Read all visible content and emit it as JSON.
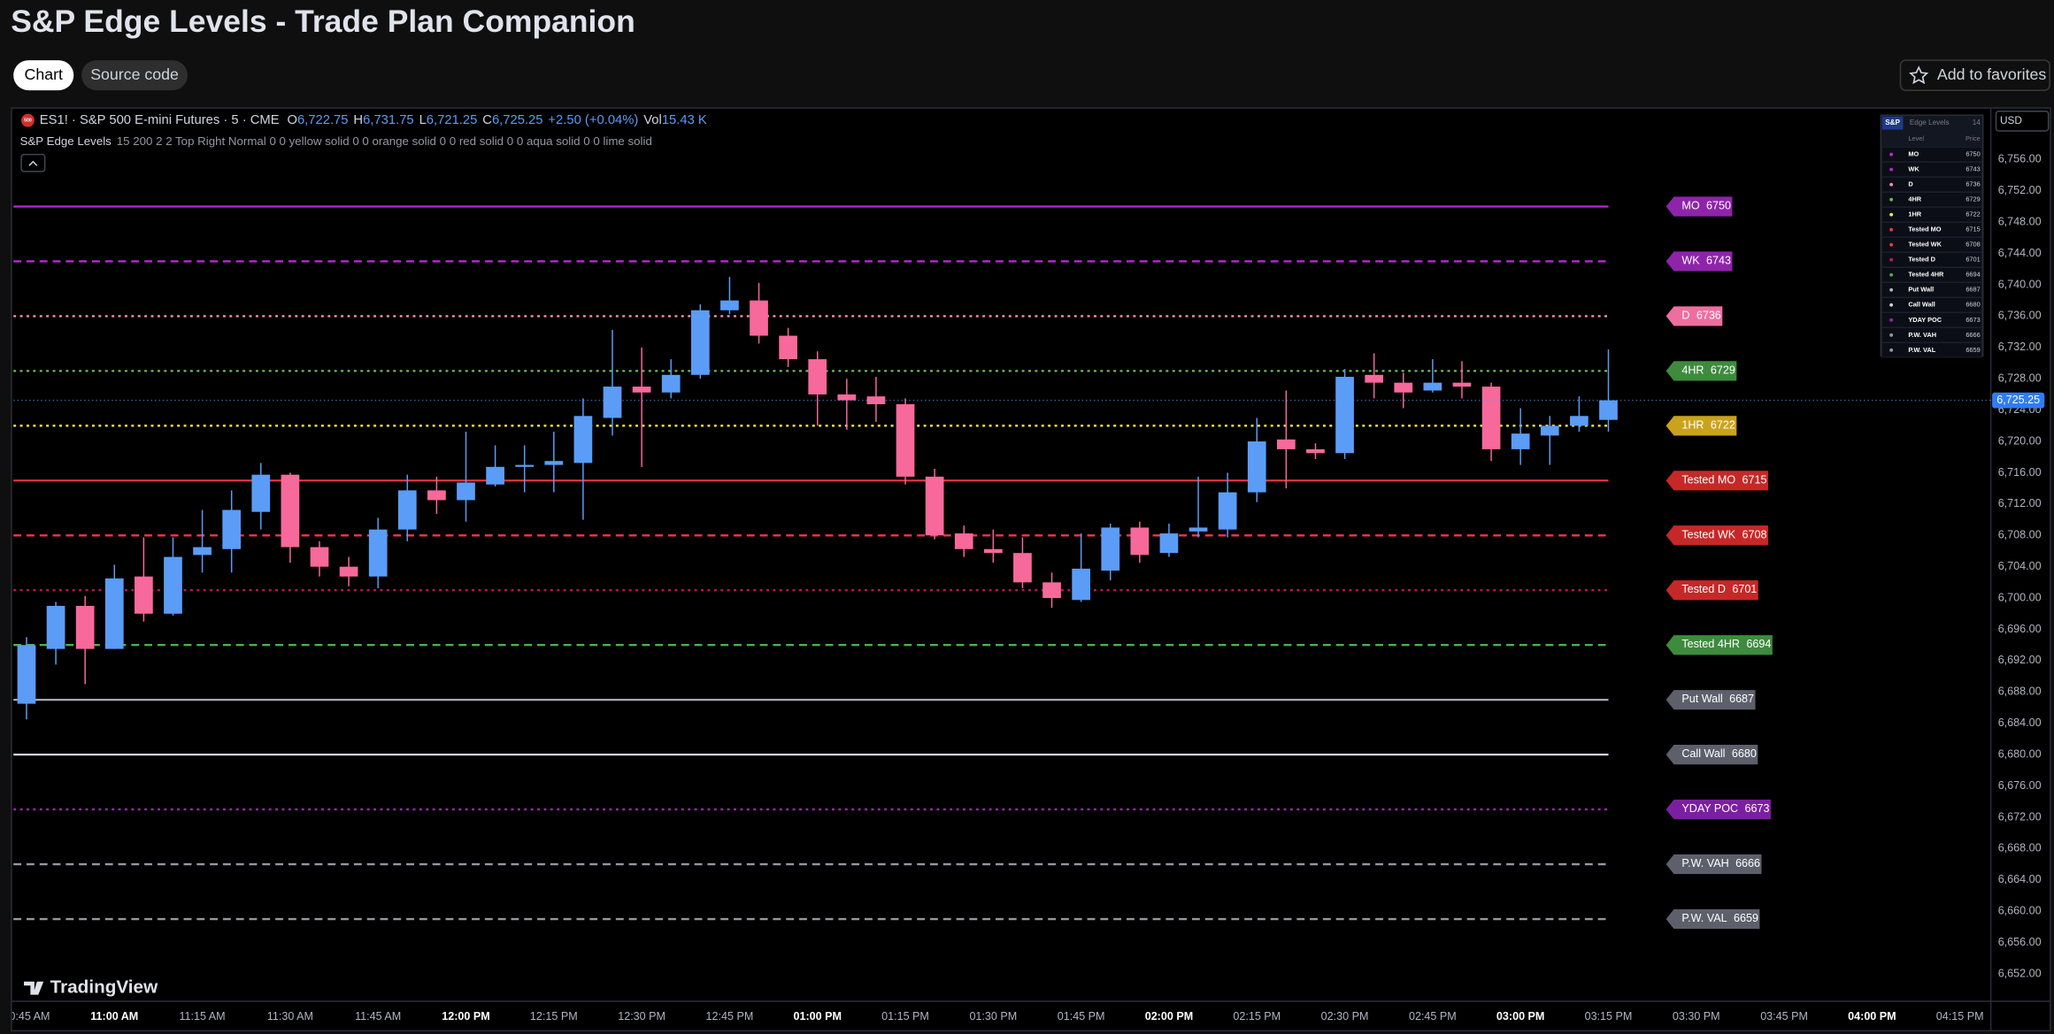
{
  "header": {
    "title": "S&P Edge Levels - Trade Plan Companion",
    "tabs": [
      "Chart",
      "Source code"
    ],
    "favorites": "Add to favorites"
  },
  "chart_data": {
    "type": "candlestick",
    "symbol_badge": "500",
    "symbol": "ES1! · S&P 500 E-mini Futures · 5 · CME",
    "legend": [
      {
        "key": "O",
        "value": "6,722.75"
      },
      {
        "key": "H",
        "value": "6,731.75"
      },
      {
        "key": "L",
        "value": "6,721.25"
      },
      {
        "key": "C",
        "value": "6,725.25"
      }
    ],
    "change": "+2.50 (+0.04%)",
    "volume": {
      "key": "Vol",
      "value": "15.43 K"
    },
    "indicator": {
      "name": "S&P Edge Levels",
      "inputs": "15 200 2 2 Top Right Normal 0 0 yellow solid 0 0 orange solid 0 0 red solid 0 0 aqua solid 0 0 lime solid"
    },
    "up_color": "#5b9cf6",
    "down_color": "#f7699a",
    "candles": [
      {
        "open": 6686.5,
        "high": 6695,
        "low": 6684.5,
        "close": 6694
      },
      {
        "open": 6693.5,
        "high": 6699.5,
        "low": 6691.5,
        "close": 6699
      },
      {
        "open": 6699,
        "high": 6700.25,
        "low": 6689,
        "close": 6693.5
      },
      {
        "open": 6693.5,
        "high": 6704.25,
        "low": 6693.5,
        "close": 6702.5
      },
      {
        "open": 6702.75,
        "high": 6707.75,
        "low": 6697,
        "close": 6698
      },
      {
        "open": 6698,
        "high": 6707.75,
        "low": 6697.75,
        "close": 6705.25
      },
      {
        "open": 6705.5,
        "high": 6711.25,
        "low": 6703.25,
        "close": 6706.5
      },
      {
        "open": 6706.25,
        "high": 6713.75,
        "low": 6703.25,
        "close": 6711.25
      },
      {
        "open": 6711,
        "high": 6717.25,
        "low": 6708.75,
        "close": 6715.75
      },
      {
        "open": 6715.75,
        "high": 6716,
        "low": 6704.5,
        "close": 6706.5
      },
      {
        "open": 6706.5,
        "high": 6707.25,
        "low": 6702.75,
        "close": 6704
      },
      {
        "open": 6704,
        "high": 6705.25,
        "low": 6701.5,
        "close": 6702.75
      },
      {
        "open": 6702.75,
        "high": 6710.25,
        "low": 6701.25,
        "close": 6708.75
      },
      {
        "open": 6708.75,
        "high": 6715.75,
        "low": 6707.25,
        "close": 6713.75
      },
      {
        "open": 6713.75,
        "high": 6715.5,
        "low": 6710.75,
        "close": 6712.5
      },
      {
        "open": 6712.5,
        "high": 6721.25,
        "low": 6709.75,
        "close": 6714.75
      },
      {
        "open": 6714.5,
        "high": 6719.5,
        "low": 6714.25,
        "close": 6716.75
      },
      {
        "open": 6716.75,
        "high": 6719.5,
        "low": 6713.5,
        "close": 6717
      },
      {
        "open": 6717,
        "high": 6721.25,
        "low": 6713.5,
        "close": 6717.5
      },
      {
        "open": 6717.25,
        "high": 6725.5,
        "low": 6710,
        "close": 6723.25
      },
      {
        "open": 6723,
        "high": 6734.25,
        "low": 6720.75,
        "close": 6727
      },
      {
        "open": 6727,
        "high": 6732,
        "low": 6716.75,
        "close": 6726.25
      },
      {
        "open": 6726.25,
        "high": 6730.5,
        "low": 6725.5,
        "close": 6728.5
      },
      {
        "open": 6728.5,
        "high": 6737.5,
        "low": 6728,
        "close": 6736.75
      },
      {
        "open": 6736.75,
        "high": 6741,
        "low": 6736.25,
        "close": 6738
      },
      {
        "open": 6738,
        "high": 6740.25,
        "low": 6732.5,
        "close": 6733.5
      },
      {
        "open": 6733.5,
        "high": 6734.5,
        "low": 6729.5,
        "close": 6730.5
      },
      {
        "open": 6730.5,
        "high": 6731.5,
        "low": 6722,
        "close": 6726
      },
      {
        "open": 6726,
        "high": 6728,
        "low": 6721.5,
        "close": 6725.25
      },
      {
        "open": 6725.75,
        "high": 6728.25,
        "low": 6722.5,
        "close": 6724.75
      },
      {
        "open": 6724.75,
        "high": 6725.5,
        "low": 6714.5,
        "close": 6715.5
      },
      {
        "open": 6715.5,
        "high": 6716.5,
        "low": 6707.5,
        "close": 6708
      },
      {
        "open": 6708.25,
        "high": 6709.25,
        "low": 6705.25,
        "close": 6706.25
      },
      {
        "open": 6706.25,
        "high": 6708.75,
        "low": 6704.5,
        "close": 6705.75
      },
      {
        "open": 6705.75,
        "high": 6707.75,
        "low": 6701.25,
        "close": 6702
      },
      {
        "open": 6702,
        "high": 6703.25,
        "low": 6698.75,
        "close": 6700
      },
      {
        "open": 6699.75,
        "high": 6708.25,
        "low": 6699.5,
        "close": 6703.75
      },
      {
        "open": 6703.5,
        "high": 6709.5,
        "low": 6702.25,
        "close": 6709
      },
      {
        "open": 6709,
        "high": 6709.75,
        "low": 6704.5,
        "close": 6705.5
      },
      {
        "open": 6705.75,
        "high": 6709.5,
        "low": 6705.25,
        "close": 6708.25
      },
      {
        "open": 6708.5,
        "high": 6715.5,
        "low": 6707.75,
        "close": 6709
      },
      {
        "open": 6708.75,
        "high": 6716,
        "low": 6707.75,
        "close": 6713.5
      },
      {
        "open": 6713.5,
        "high": 6723,
        "low": 6712.25,
        "close": 6720
      },
      {
        "open": 6720.25,
        "high": 6726.5,
        "low": 6714,
        "close": 6719
      },
      {
        "open": 6719,
        "high": 6719.75,
        "low": 6717.75,
        "close": 6718.5
      },
      {
        "open": 6718.5,
        "high": 6729.25,
        "low": 6717.75,
        "close": 6728.25
      },
      {
        "open": 6728.5,
        "high": 6731.25,
        "low": 6725.5,
        "close": 6727.5
      },
      {
        "open": 6727.5,
        "high": 6728.75,
        "low": 6724.25,
        "close": 6726.25
      },
      {
        "open": 6726.5,
        "high": 6730.5,
        "low": 6726.25,
        "close": 6727.5
      },
      {
        "open": 6727.5,
        "high": 6730.25,
        "low": 6725.5,
        "close": 6727
      },
      {
        "open": 6727,
        "high": 6727.5,
        "low": 6717.5,
        "close": 6719
      },
      {
        "open": 6719,
        "high": 6724.25,
        "low": 6717,
        "close": 6721
      },
      {
        "open": 6720.75,
        "high": 6723.25,
        "low": 6717,
        "close": 6722
      },
      {
        "open": 6722,
        "high": 6725.75,
        "low": 6721.25,
        "close": 6723.25
      },
      {
        "open": 6722.75,
        "high": 6731.75,
        "low": 6721.25,
        "close": 6725.25
      }
    ],
    "xtick_labels": [
      "10:45 AM",
      "11:00 AM",
      "11:15 AM",
      "11:30 AM",
      "11:45 AM",
      "12:00 PM",
      "12:15 PM",
      "12:30 PM",
      "12:45 PM",
      "01:00 PM",
      "01:15 PM",
      "01:30 PM",
      "01:45 PM",
      "02:00 PM",
      "02:15 PM",
      "02:30 PM",
      "02:45 PM",
      "03:00 PM",
      "03:15 PM",
      "03:30 PM",
      "03:45 PM",
      "04:00 PM",
      "04:15 PM"
    ],
    "ylim": [
      6648.5,
      6762.5
    ],
    "yticks": [
      {
        "value": 6756,
        "label": "6,756.00"
      },
      {
        "value": 6752,
        "label": "6,752.00"
      },
      {
        "value": 6748,
        "label": "6,748.00"
      },
      {
        "value": 6744,
        "label": "6,744.00"
      },
      {
        "value": 6740,
        "label": "6,740.00"
      },
      {
        "value": 6736,
        "label": "6,736.00"
      },
      {
        "value": 6732,
        "label": "6,732.00"
      },
      {
        "value": 6728,
        "label": "6,728.00"
      },
      {
        "value": 6724,
        "label": "6,724.00"
      },
      {
        "value": 6720,
        "label": "6,720.00"
      },
      {
        "value": 6716,
        "label": "6,716.00"
      },
      {
        "value": 6712,
        "label": "6,712.00"
      },
      {
        "value": 6708,
        "label": "6,708.00"
      },
      {
        "value": 6704,
        "label": "6,704.00"
      },
      {
        "value": 6700,
        "label": "6,700.00"
      },
      {
        "value": 6696,
        "label": "6,696.00"
      },
      {
        "value": 6692,
        "label": "6,692.00"
      },
      {
        "value": 6688,
        "label": "6,688.00"
      },
      {
        "value": 6684,
        "label": "6,684.00"
      },
      {
        "value": 6680,
        "label": "6,680.00"
      },
      {
        "value": 6676,
        "label": "6,676.00"
      },
      {
        "value": 6672,
        "label": "6,672.00"
      },
      {
        "value": 6668,
        "label": "6,668.00"
      },
      {
        "value": 6664,
        "label": "6,664.00"
      },
      {
        "value": 6660,
        "label": "6,660.00"
      },
      {
        "value": 6656,
        "label": "6,656.00"
      },
      {
        "value": 6652,
        "label": "6,652.00"
      }
    ],
    "last_price": {
      "value": 6725.25,
      "label": "6,725.25"
    },
    "currency": "USD",
    "levels": [
      {
        "name": "MO",
        "value": 6750,
        "color": "#b52ad1",
        "style": "solid",
        "label_color": "#8e24aa"
      },
      {
        "name": "WK",
        "value": 6743,
        "color": "#b52ad1",
        "style": "dashed",
        "label_color": "#8e24aa"
      },
      {
        "name": "D",
        "value": 6736,
        "color": "#f48fb1",
        "style": "dotted",
        "label_color": "#ec6f9f"
      },
      {
        "name": "4HR",
        "value": 6729,
        "color": "#6abf4b",
        "style": "dotted",
        "label_color": "#3d8b3d"
      },
      {
        "name": "1HR",
        "value": 6722,
        "color": "#ffeb3b",
        "style": "dotted",
        "label_color": "#c9a31c"
      },
      {
        "name": "Tested MO",
        "value": 6715,
        "color": "#f23645",
        "style": "solid",
        "label_color": "#c62828"
      },
      {
        "name": "Tested WK",
        "value": 6708,
        "color": "#f23645",
        "style": "dashed",
        "label_color": "#c62828"
      },
      {
        "name": "Tested D",
        "value": 6701,
        "color": "#c2185b",
        "style": "dotted",
        "label_color": "#c62828"
      },
      {
        "name": "Tested 4HR",
        "value": 6694,
        "color": "#4caf50",
        "style": "dashed",
        "label_color": "#3d8b3d"
      },
      {
        "name": "Put Wall",
        "value": 6687,
        "color": "#b2b5be",
        "style": "solid",
        "label_color": "#5d606b"
      },
      {
        "name": "Call Wall",
        "value": 6680,
        "color": "#d1d4dc",
        "style": "solid",
        "label_color": "#5d606b"
      },
      {
        "name": "YDAY POC",
        "value": 6673,
        "color": "#9c27b0",
        "style": "dotted",
        "label_color": "#7b1fa2"
      },
      {
        "name": "P.W. VAH",
        "value": 6666,
        "color": "#9598a1",
        "style": "dashed",
        "label_color": "#5d606b"
      },
      {
        "name": "P.W. VAL",
        "value": 6659,
        "color": "#9598a1",
        "style": "dashed",
        "label_color": "#5d606b"
      }
    ],
    "table": {
      "title": "S&P",
      "subtitle": "Edge Levels",
      "count": 14,
      "columns": [
        "Level",
        "Price"
      ]
    },
    "watermark": "TradingView"
  }
}
